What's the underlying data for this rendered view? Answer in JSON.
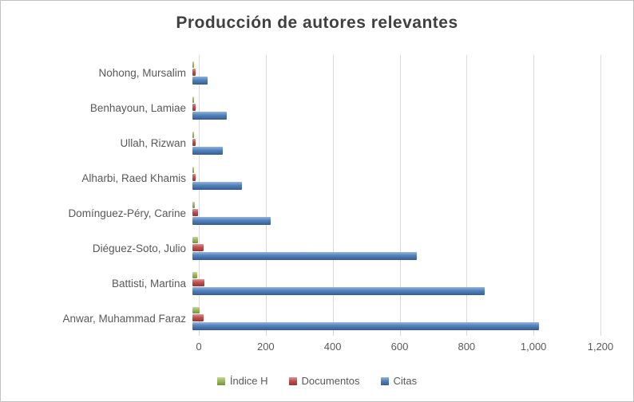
{
  "chart_data": {
    "type": "bar",
    "orientation": "horizontal",
    "title": "Producción de autores relevantes",
    "categories": [
      "Nohong, Mursalim",
      "Benhayoun, Lamiae",
      "Ullah, Rizwan",
      "Alharbi, Raed Khamis",
      "Domínguez-Péry, Carine",
      "Diéguez-Soto, Julio",
      "Battisti, Martina",
      "Anwar, Muhammad Faraz"
    ],
    "series": [
      {
        "name": "Índice H",
        "color": "#9BBB59",
        "values": [
          4,
          4,
          4,
          5,
          6,
          16,
          15,
          20
        ]
      },
      {
        "name": "Documentos",
        "color": "#C0504D",
        "values": [
          9,
          10,
          9,
          10,
          16,
          33,
          36,
          34
        ]
      },
      {
        "name": "Citas",
        "color": "#4F81BD",
        "values": [
          45,
          100,
          90,
          145,
          230,
          660,
          860,
          1020
        ]
      }
    ],
    "xlim": [
      0,
      1200
    ],
    "xticks": [
      0,
      200,
      400,
      600,
      800,
      1000,
      1200
    ],
    "grid": true,
    "legend_position": "bottom",
    "title_color": "#404040",
    "axis_text_color": "#595959",
    "gridline_color": "#D9D9D9"
  }
}
